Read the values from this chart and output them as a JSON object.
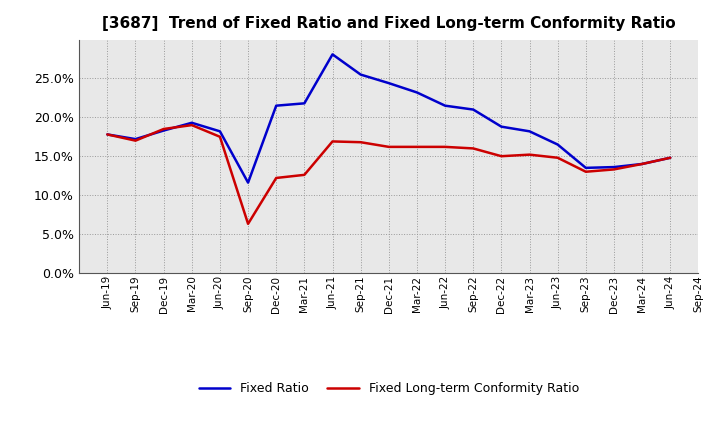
{
  "title": "[3687]  Trend of Fixed Ratio and Fixed Long-term Conformity Ratio",
  "x_labels": [
    "Jun-19",
    "Sep-19",
    "Dec-19",
    "Mar-20",
    "Jun-20",
    "Sep-20",
    "Dec-20",
    "Mar-21",
    "Jun-21",
    "Sep-21",
    "Dec-21",
    "Mar-22",
    "Jun-22",
    "Sep-22",
    "Dec-22",
    "Mar-23",
    "Jun-23",
    "Sep-23",
    "Dec-23",
    "Mar-24",
    "Jun-24",
    "Sep-24"
  ],
  "fixed_ratio": [
    0.178,
    0.172,
    0.183,
    0.193,
    0.182,
    0.116,
    0.215,
    0.218,
    0.281,
    0.255,
    0.244,
    0.232,
    0.215,
    0.21,
    0.188,
    0.182,
    0.165,
    0.135,
    0.136,
    0.14,
    0.148,
    null
  ],
  "fixed_lt_ratio": [
    0.178,
    0.17,
    0.185,
    0.19,
    0.175,
    0.063,
    0.122,
    0.126,
    0.169,
    0.168,
    0.162,
    0.162,
    0.162,
    0.16,
    0.15,
    0.152,
    0.148,
    0.13,
    0.133,
    0.14,
    0.148,
    null
  ],
  "fixed_ratio_color": "#0000cc",
  "fixed_lt_ratio_color": "#cc0000",
  "ylim": [
    0.0,
    0.3
  ],
  "yticks": [
    0.0,
    0.05,
    0.1,
    0.15,
    0.2,
    0.25
  ],
  "background_color": "#ffffff",
  "plot_bg_color": "#e8e8e8",
  "grid_color": "#999999",
  "legend_fixed": "Fixed Ratio",
  "legend_fixed_lt": "Fixed Long-term Conformity Ratio",
  "title_fontsize": 11
}
